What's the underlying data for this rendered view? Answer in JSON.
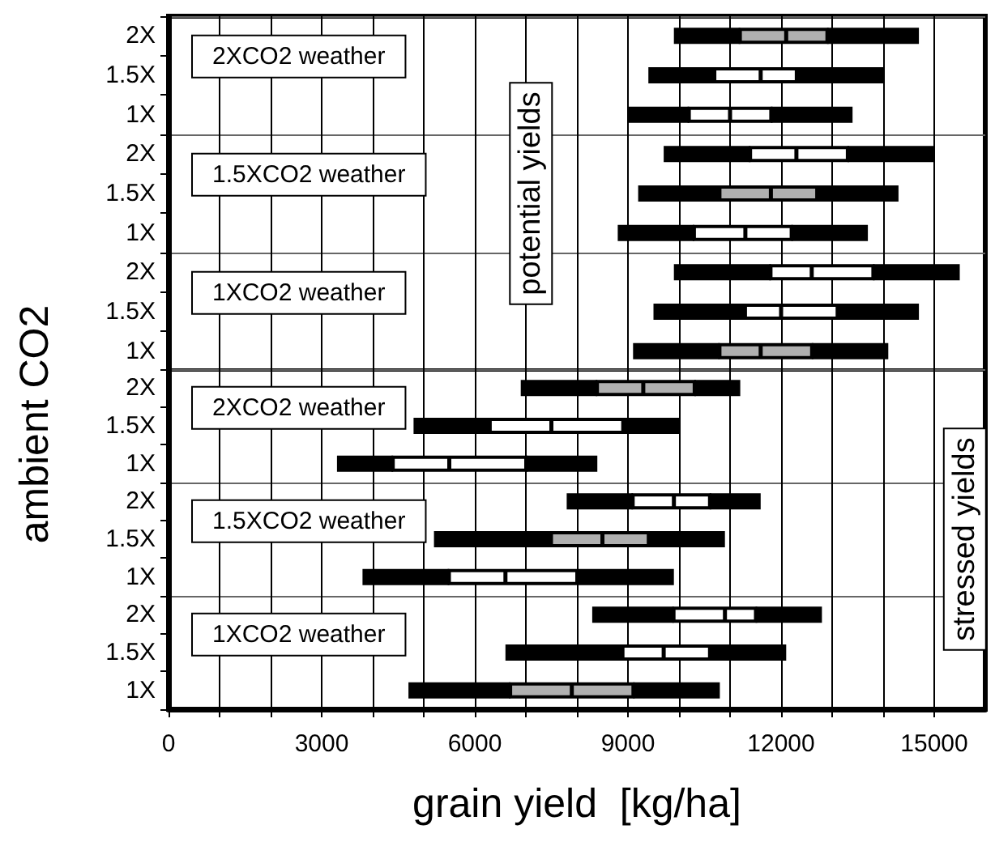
{
  "chart_data": [
    {
      "type": "box",
      "orientation": "horizontal",
      "ylabel": "ambient CO2",
      "tick_labels": "y",
      "grid": true,
      "categories": [
        "2X",
        "1.5X",
        "1X",
        "2X",
        "1.5X",
        "1X",
        "2X",
        "1.5X",
        "1X"
      ],
      "xlim": [
        0,
        16000
      ],
      "xticks": [
        0,
        {
          "value": 1000,
          "label": null
        },
        {
          "value": 2000,
          "label": null
        },
        3000,
        {
          "value": 4000,
          "label": null
        },
        {
          "value": 5000,
          "label": null
        },
        6000,
        {
          "value": 7000,
          "label": null
        },
        {
          "value": 8000,
          "label": null
        },
        9000,
        {
          "value": 10000,
          "label": null
        },
        {
          "value": 11000,
          "label": null
        },
        12000,
        {
          "value": 13000,
          "label": null
        },
        {
          "value": 14000,
          "label": null
        },
        15000
      ],
      "colors": [
        "#b0b0b0",
        "#ffffff",
        "#ffffff",
        "#ffffff",
        "#b0b0b0",
        "#ffffff",
        "#ffffff",
        "#ffffff",
        "#b0b0b0"
      ],
      "boxes": [
        {
          "low": 9900,
          "q1": 11200,
          "median": 12100,
          "q3": 12900,
          "high": 14700
        },
        {
          "low": 9400,
          "q1": 10700,
          "median": 11600,
          "q3": 12300,
          "high": 14000
        },
        {
          "low": 9000,
          "q1": 10200,
          "median": 11000,
          "q3": 11800,
          "high": 13400
        },
        {
          "low": 9700,
          "q1": 11400,
          "median": 12300,
          "q3": 13300,
          "high": 15000
        },
        {
          "low": 9200,
          "q1": 10800,
          "median": 11800,
          "q3": 12700,
          "high": 14300
        },
        {
          "low": 8800,
          "q1": 10300,
          "median": 11300,
          "q3": 12200,
          "high": 13700
        },
        {
          "low": 9900,
          "q1": 11800,
          "median": 12600,
          "q3": 13800,
          "high": 15500
        },
        {
          "low": 9500,
          "q1": 11300,
          "median": 12000,
          "q3": 13100,
          "high": 14700
        },
        {
          "low": 9100,
          "q1": 10800,
          "median": 11600,
          "q3": 12600,
          "high": 14100
        }
      ],
      "annotations": [
        "2XCO2 weather",
        "1.5XCO2 weather",
        "1XCO2 weather",
        "potential yields"
      ]
    },
    {
      "type": "box",
      "orientation": "horizontal",
      "xlabel": "grain yield  [kg/ha]",
      "grid": true,
      "categories": [
        "2X",
        "1.5X",
        "1X",
        "2X",
        "1.5X",
        "1X",
        "2X",
        "1.5X",
        "1X"
      ],
      "xlim": [
        0,
        16000
      ],
      "xticks": [
        0,
        {
          "value": 1000,
          "label": null
        },
        {
          "value": 2000,
          "label": null
        },
        3000,
        {
          "value": 4000,
          "label": null
        },
        {
          "value": 5000,
          "label": null
        },
        6000,
        {
          "value": 7000,
          "label": null
        },
        {
          "value": 8000,
          "label": null
        },
        9000,
        {
          "value": 10000,
          "label": null
        },
        {
          "value": 11000,
          "label": null
        },
        12000,
        {
          "value": 13000,
          "label": null
        },
        {
          "value": 14000,
          "label": null
        },
        15000
      ],
      "colors": [
        "#b0b0b0",
        "#ffffff",
        "#ffffff",
        "#ffffff",
        "#b0b0b0",
        "#ffffff",
        "#ffffff",
        "#ffffff",
        "#b0b0b0"
      ],
      "boxes": [
        {
          "low": 6900,
          "q1": 8400,
          "median": 9300,
          "q3": 10300,
          "high": 11200
        },
        {
          "low": 4800,
          "q1": 6300,
          "median": 7500,
          "q3": 8900,
          "high": 10000
        },
        {
          "low": 3300,
          "q1": 4400,
          "median": 5500,
          "q3": 7000,
          "high": 8400
        },
        {
          "low": 7800,
          "q1": 9100,
          "median": 9900,
          "q3": 10600,
          "high": 11600
        },
        {
          "low": 5200,
          "q1": 7500,
          "median": 8500,
          "q3": 9400,
          "high": 10900
        },
        {
          "low": 3800,
          "q1": 5500,
          "median": 6600,
          "q3": 8000,
          "high": 9900
        },
        {
          "low": 8300,
          "q1": 9900,
          "median": 10900,
          "q3": 11500,
          "high": 12800
        },
        {
          "low": 6600,
          "q1": 8900,
          "median": 9700,
          "q3": 10600,
          "high": 12100
        },
        {
          "low": 4700,
          "q1": 6700,
          "median": 7900,
          "q3": 9100,
          "high": 10800
        }
      ],
      "annotations": [
        "2XCO2 weather",
        "1.5XCO2 weather",
        "1XCO2 weather",
        "stressed yields"
      ]
    }
  ]
}
